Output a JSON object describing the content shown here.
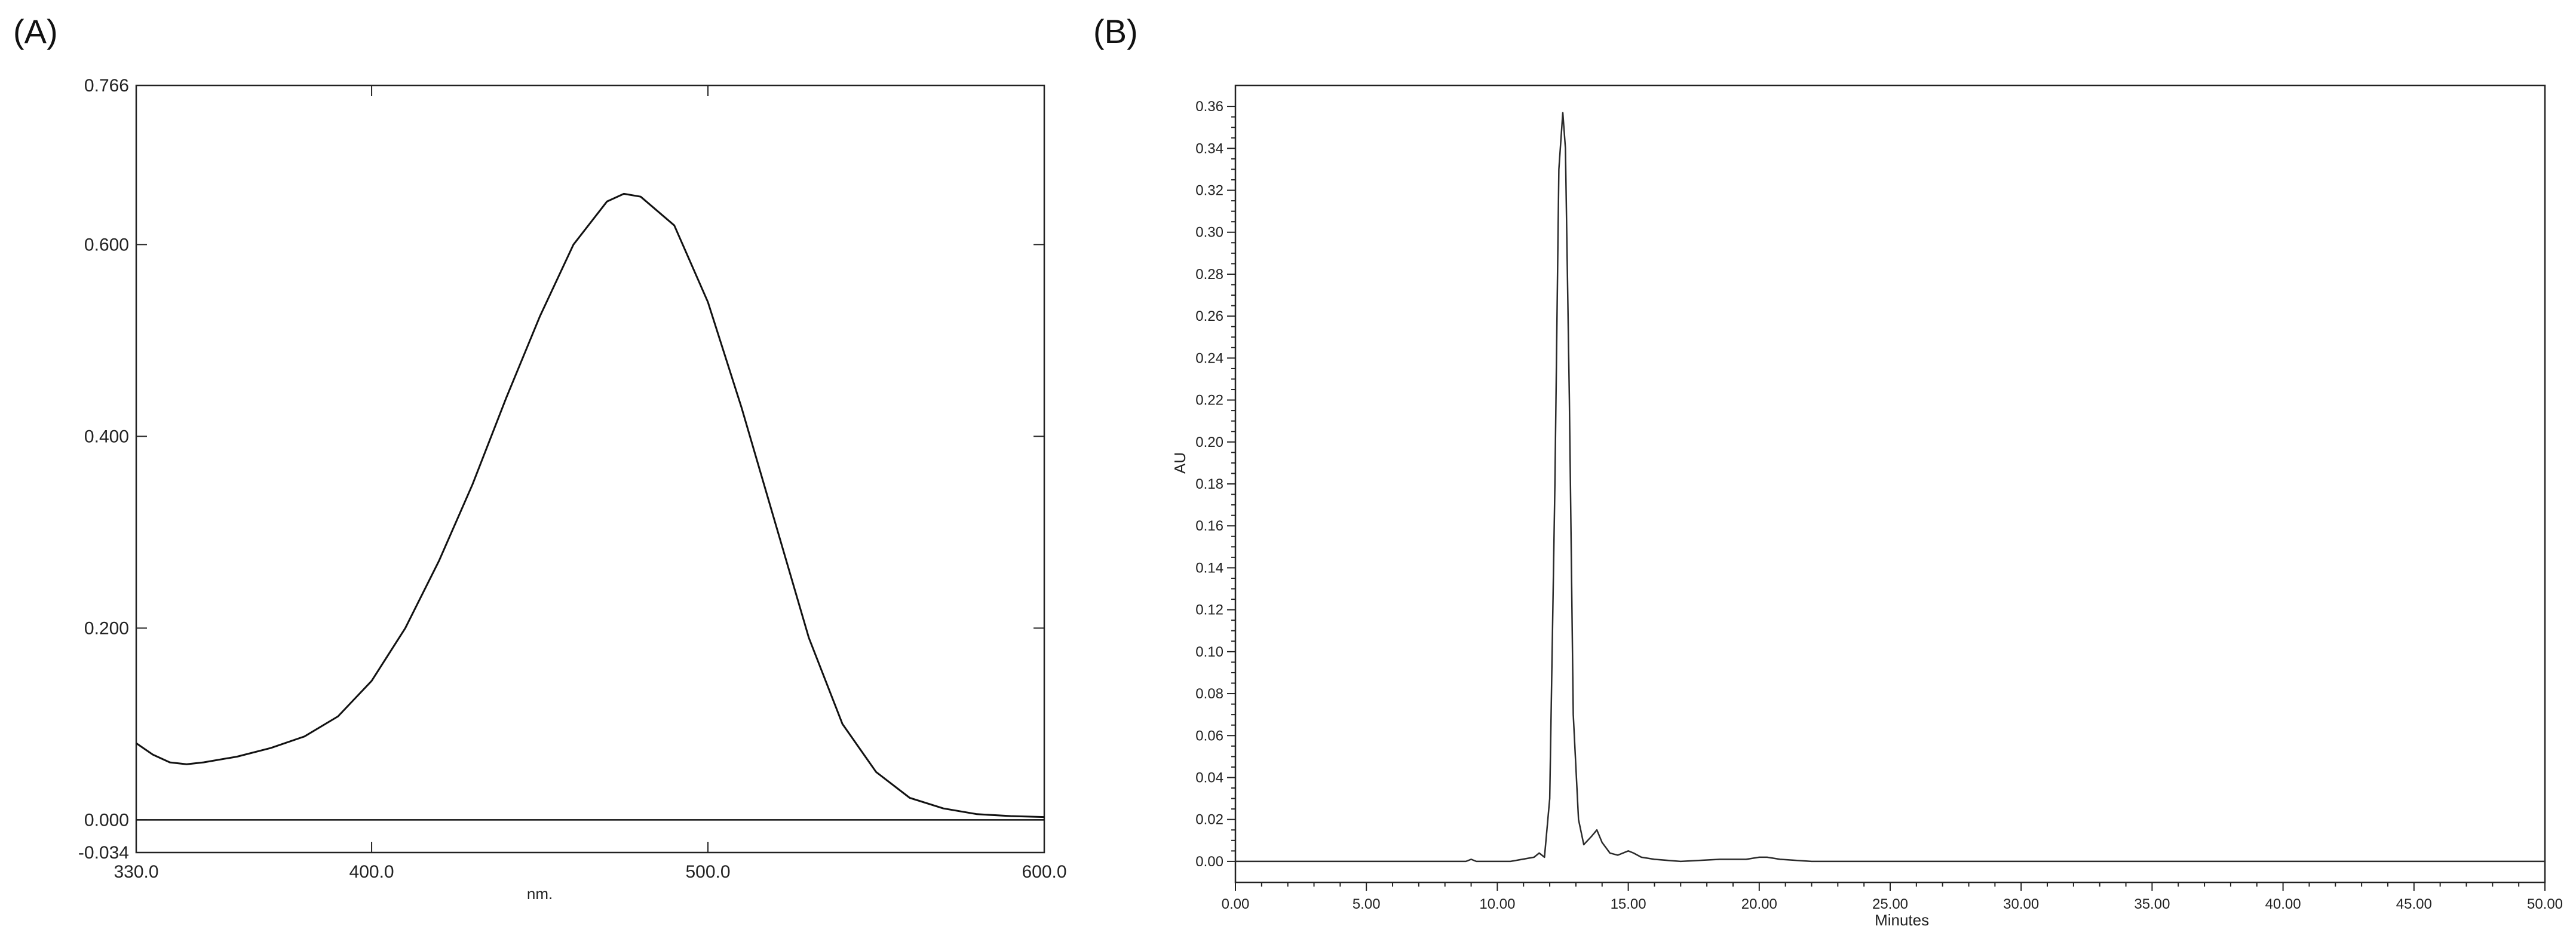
{
  "chart_data": [
    {
      "panel": "(A)",
      "type": "line",
      "xlabel": "nm.",
      "ylabel": "",
      "xlim": [
        330,
        600
      ],
      "ylim": [
        -0.034,
        0.766
      ],
      "x_ticks": [
        "330.0",
        "400.0",
        "500.0",
        "600.0"
      ],
      "x_tick_values": [
        330,
        400,
        500,
        600
      ],
      "y_ticks": [
        "0.766",
        "0.600",
        "0.400",
        "0.200",
        "0.000",
        "-0.034"
      ],
      "y_tick_values": [
        0.766,
        0.6,
        0.4,
        0.2,
        0.0,
        -0.034
      ],
      "grid": false,
      "baseline": 0.0,
      "series": [
        {
          "x": [
            330,
            335,
            340,
            345,
            350,
            360,
            370,
            380,
            390,
            400,
            410,
            420,
            430,
            440,
            450,
            460,
            470,
            475,
            480,
            490,
            500,
            510,
            520,
            530,
            540,
            550,
            560,
            570,
            580,
            590,
            600
          ],
          "y": [
            0.08,
            0.068,
            0.06,
            0.058,
            0.06,
            0.066,
            0.075,
            0.087,
            0.108,
            0.145,
            0.2,
            0.27,
            0.35,
            0.44,
            0.525,
            0.6,
            0.645,
            0.653,
            0.65,
            0.62,
            0.54,
            0.43,
            0.31,
            0.19,
            0.1,
            0.05,
            0.023,
            0.012,
            0.006,
            0.004,
            0.003
          ]
        }
      ]
    },
    {
      "panel": "(B)",
      "type": "line",
      "xlabel": "Minutes",
      "ylabel": "AU",
      "xlim": [
        0,
        50
      ],
      "ylim": [
        -0.01,
        0.37
      ],
      "x_ticks": [
        "0.00",
        "5.00",
        "10.00",
        "15.00",
        "20.00",
        "25.00",
        "30.00",
        "35.00",
        "40.00",
        "45.00",
        "50.00"
      ],
      "x_tick_values": [
        0,
        5,
        10,
        15,
        20,
        25,
        30,
        35,
        40,
        45,
        50
      ],
      "y_ticks": [
        "0.36",
        "0.34",
        "0.32",
        "0.30",
        "0.28",
        "0.26",
        "0.24",
        "0.22",
        "0.20",
        "0.18",
        "0.16",
        "0.14",
        "0.12",
        "0.10",
        "0.08",
        "0.06",
        "0.04",
        "0.02",
        "0.00"
      ],
      "y_tick_values": [
        0.36,
        0.34,
        0.32,
        0.3,
        0.28,
        0.26,
        0.24,
        0.22,
        0.2,
        0.18,
        0.16,
        0.14,
        0.12,
        0.1,
        0.08,
        0.06,
        0.04,
        0.02,
        0.0
      ],
      "grid": false,
      "series": [
        {
          "x": [
            0,
            8.8,
            9.0,
            9.2,
            10.5,
            11.4,
            11.6,
            11.8,
            12.0,
            12.2,
            12.35,
            12.5,
            12.6,
            12.75,
            12.9,
            13.1,
            13.3,
            13.6,
            13.8,
            14.0,
            14.3,
            14.6,
            15.0,
            15.2,
            15.5,
            16.0,
            17.0,
            18.5,
            19.5,
            20.0,
            20.3,
            20.8,
            22.0,
            30.0,
            50.0
          ],
          "y": [
            0.0,
            0.0,
            0.001,
            0.0,
            0.0,
            0.002,
            0.004,
            0.002,
            0.03,
            0.18,
            0.33,
            0.357,
            0.34,
            0.22,
            0.07,
            0.02,
            0.008,
            0.012,
            0.015,
            0.009,
            0.004,
            0.003,
            0.005,
            0.004,
            0.002,
            0.001,
            0.0,
            0.001,
            0.001,
            0.002,
            0.002,
            0.001,
            0.0,
            0.0,
            0.0
          ]
        }
      ]
    }
  ]
}
